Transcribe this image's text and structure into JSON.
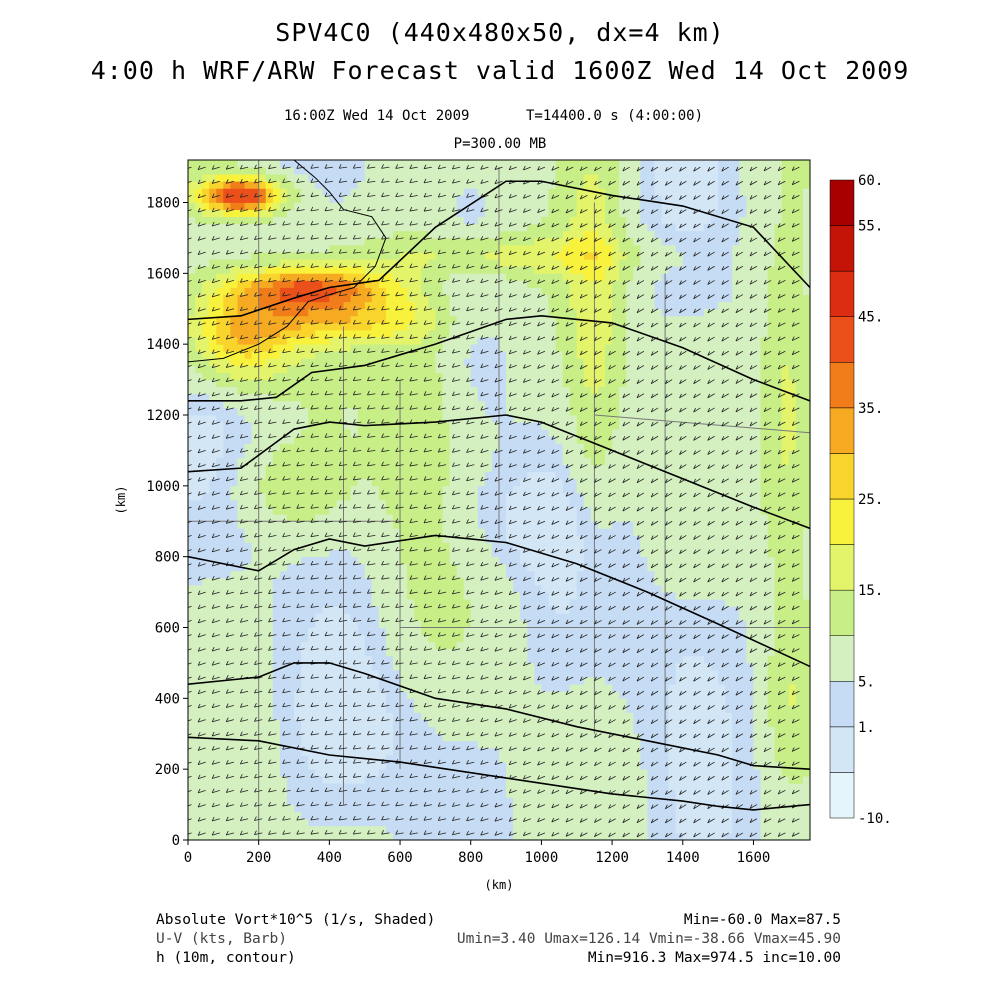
{
  "header": {
    "title_line1": "SPV4C0 (440x480x50, dx=4 km)",
    "title_line2": "4:00 h WRF/ARW Forecast valid 1600Z Wed 14 Oct 2009",
    "valid_time": "16:00Z Wed 14 Oct 2009",
    "model_time": "T=14400.0 s (4:00:00)",
    "level": "P=300.00 MB"
  },
  "footer": {
    "field1_label": "Absolute Vort*10^5 (1/s, Shaded)",
    "field1_stats": "Min=-60.0 Max=87.5",
    "field2_label": "U-V (kts, Barb)",
    "field2_stats": "Umin=3.40 Umax=126.14 Vmin=-38.66 Vmax=45.90",
    "field3_label": "h (10m, contour)",
    "field3_stats": "Min=916.3 Max=974.5 inc=10.00"
  },
  "colors": {
    "contour": "#000000",
    "boundary": "#777777",
    "colorbar": [
      "#e4f6fb",
      "#d2e6f6",
      "#c6dcf4",
      "#d4f0c0",
      "#c8ee88",
      "#e4f46a",
      "#f8f23c",
      "#f8d42c",
      "#f6aa22",
      "#f07c1a",
      "#ec501a",
      "#dc2c12",
      "#c41408",
      "#a80000"
    ]
  },
  "chart_data": {
    "type": "heatmap",
    "xlabel": "(km)",
    "ylabel": "(km)",
    "xlim": [
      0,
      1760
    ],
    "ylim": [
      0,
      1920
    ],
    "xticks": [
      0,
      200,
      400,
      600,
      800,
      1000,
      1200,
      1400,
      1600
    ],
    "yticks": [
      0,
      200,
      400,
      600,
      800,
      1000,
      1200,
      1400,
      1600,
      1800
    ],
    "colorbar_labels": [
      "60.",
      "55.",
      "45.",
      "35.",
      "25.",
      "15.",
      "5.",
      "1.",
      "-10."
    ],
    "colorbar_levels": [
      -10,
      -5,
      -1,
      1,
      5,
      10,
      15,
      20,
      25,
      30,
      35,
      45,
      55,
      60
    ],
    "contours": [
      {
        "points": [
          [
            0,
            290
          ],
          [
            200,
            280
          ],
          [
            400,
            240
          ],
          [
            600,
            220
          ],
          [
            800,
            190
          ],
          [
            1000,
            160
          ],
          [
            1200,
            130
          ],
          [
            1400,
            110
          ],
          [
            1500,
            95
          ],
          [
            1600,
            85
          ],
          [
            1760,
            100
          ]
        ]
      },
      {
        "points": [
          [
            0,
            440
          ],
          [
            100,
            450
          ],
          [
            200,
            460
          ],
          [
            300,
            500
          ],
          [
            400,
            500
          ],
          [
            500,
            470
          ],
          [
            700,
            400
          ],
          [
            900,
            370
          ],
          [
            1100,
            320
          ],
          [
            1300,
            280
          ],
          [
            1500,
            240
          ],
          [
            1600,
            210
          ],
          [
            1760,
            200
          ]
        ]
      },
      {
        "points": [
          [
            0,
            800
          ],
          [
            100,
            780
          ],
          [
            200,
            760
          ],
          [
            300,
            820
          ],
          [
            400,
            850
          ],
          [
            500,
            830
          ],
          [
            700,
            860
          ],
          [
            900,
            840
          ],
          [
            1100,
            780
          ],
          [
            1300,
            700
          ],
          [
            1500,
            610
          ],
          [
            1760,
            490
          ]
        ]
      },
      {
        "points": [
          [
            0,
            1040
          ],
          [
            150,
            1050
          ],
          [
            300,
            1160
          ],
          [
            400,
            1180
          ],
          [
            500,
            1170
          ],
          [
            700,
            1180
          ],
          [
            900,
            1200
          ],
          [
            1000,
            1180
          ],
          [
            1200,
            1100
          ],
          [
            1400,
            1020
          ],
          [
            1600,
            940
          ],
          [
            1760,
            880
          ]
        ]
      },
      {
        "points": [
          [
            0,
            1240
          ],
          [
            150,
            1240
          ],
          [
            250,
            1250
          ],
          [
            350,
            1320
          ],
          [
            500,
            1340
          ],
          [
            700,
            1400
          ],
          [
            900,
            1470
          ],
          [
            1000,
            1480
          ],
          [
            1200,
            1460
          ],
          [
            1400,
            1390
          ],
          [
            1600,
            1300
          ],
          [
            1760,
            1240
          ]
        ]
      },
      {
        "points": [
          [
            0,
            1470
          ],
          [
            150,
            1480
          ],
          [
            300,
            1530
          ],
          [
            400,
            1560
          ],
          [
            540,
            1580
          ],
          [
            700,
            1730
          ],
          [
            900,
            1860
          ],
          [
            1000,
            1860
          ],
          [
            1200,
            1820
          ],
          [
            1400,
            1790
          ],
          [
            1600,
            1730
          ],
          [
            1760,
            1560
          ]
        ]
      }
    ],
    "shading_features": [
      {
        "x": 900,
        "y": 1650,
        "sx": 380,
        "sy": 60,
        "value": 10
      },
      {
        "x": 1150,
        "y": 1500,
        "sx": 80,
        "sy": 600,
        "value": 10
      },
      {
        "x": 650,
        "y": 1250,
        "sx": 120,
        "sy": 500,
        "value": 8
      },
      {
        "x": 1700,
        "y": 1200,
        "sx": 80,
        "sy": 450,
        "value": 12
      },
      {
        "x": 150,
        "y": 1420,
        "sx": 150,
        "sy": 130,
        "value": 22
      },
      {
        "x": 350,
        "y": 1560,
        "sx": 220,
        "sy": 60,
        "value": 30
      },
      {
        "x": 150,
        "y": 1820,
        "sx": 110,
        "sy": 50,
        "value": 40
      },
      {
        "x": 420,
        "y": 1470,
        "sx": 260,
        "sy": 70,
        "value": 18
      },
      {
        "x": 300,
        "y": 1000,
        "sx": 160,
        "sy": 120,
        "value": 6
      },
      {
        "x": 900,
        "y": 900,
        "sx": 260,
        "sy": 150,
        "value": -3
      },
      {
        "x": 1400,
        "y": 600,
        "sx": 200,
        "sy": 250,
        "value": -2
      },
      {
        "x": 600,
        "y": 300,
        "sx": 300,
        "sy": 200,
        "value": -2
      },
      {
        "x": 1700,
        "y": 400,
        "sx": 60,
        "sy": 200,
        "value": 6
      }
    ],
    "coastline": [
      [
        0,
        1350
      ],
      [
        100,
        1360
      ],
      [
        200,
        1400
      ],
      [
        280,
        1450
      ],
      [
        340,
        1520
      ],
      [
        400,
        1540
      ],
      [
        470,
        1560
      ],
      [
        530,
        1620
      ],
      [
        560,
        1700
      ],
      [
        520,
        1760
      ],
      [
        440,
        1780
      ],
      [
        400,
        1830
      ],
      [
        360,
        1870
      ],
      [
        300,
        1920
      ]
    ]
  }
}
